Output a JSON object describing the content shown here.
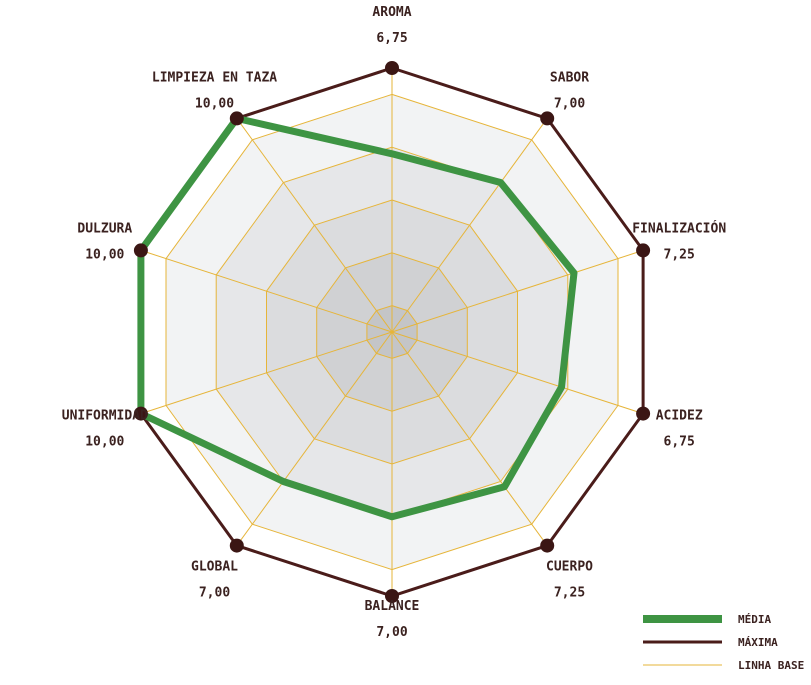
{
  "chart_data": {
    "type": "radar",
    "title": "",
    "axes": [
      {
        "name": "AROMA",
        "score": "6,75"
      },
      {
        "name": "SABOR",
        "score": "7,00"
      },
      {
        "name": "FINALIZACIÓN",
        "score": "7,25"
      },
      {
        "name": "ACIDEZ",
        "score": "6,75"
      },
      {
        "name": "CUERPO",
        "score": "7,25"
      },
      {
        "name": "BALANCE",
        "score": "7,00"
      },
      {
        "name": "GLOBAL",
        "score": "7,00"
      },
      {
        "name": "UNIFORMIDAD",
        "score": "10,00"
      },
      {
        "name": "DULZURA",
        "score": "10,00"
      },
      {
        "name": "LIMPIEZA EN TAZA",
        "score": "10,00"
      }
    ],
    "range": [
      0,
      10
    ],
    "rings": 5,
    "series": [
      {
        "name": "MÉDIA",
        "values": [
          6.75,
          7.0,
          7.25,
          6.75,
          7.25,
          7.0,
          7.0,
          10.0,
          10.0,
          10.0
        ],
        "color": "#3e9443"
      },
      {
        "name": "MÁXIMA",
        "values": [
          10,
          10,
          10,
          10,
          10,
          10,
          10,
          10,
          10,
          10
        ],
        "color": "#4a1c1a"
      }
    ],
    "baseline": {
      "name": "LINHA BASE",
      "color": "#e6b53a"
    },
    "legend_position": "bottom-right"
  }
}
